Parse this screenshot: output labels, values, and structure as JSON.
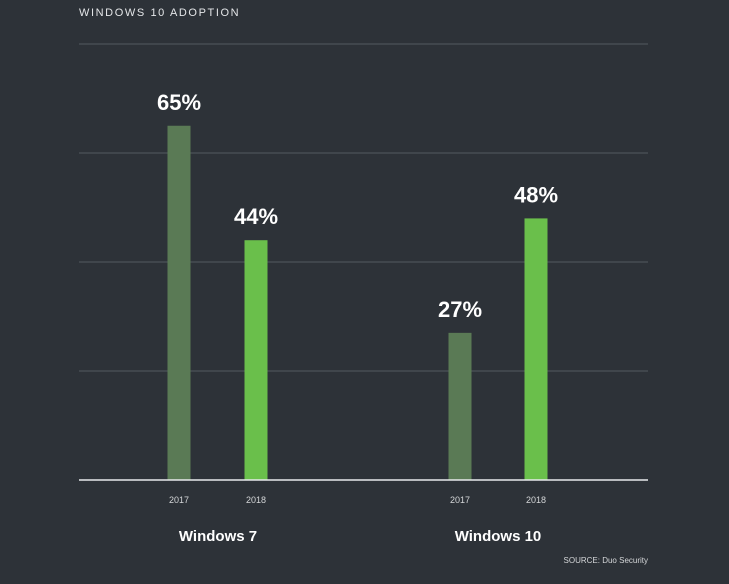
{
  "chart_data": {
    "type": "bar",
    "title": "WINDOWS 10 ADOPTION",
    "groups": [
      {
        "name": "Windows 7",
        "bars": [
          {
            "year": "2017",
            "value": 65,
            "label": "65%",
            "color": "#5a7a55"
          },
          {
            "year": "2018",
            "value": 44,
            "label": "44%",
            "color": "#6abf4b"
          }
        ]
      },
      {
        "name": "Windows 10",
        "bars": [
          {
            "year": "2017",
            "value": 27,
            "label": "27%",
            "color": "#5a7a55"
          },
          {
            "year": "2018",
            "value": 48,
            "label": "48%",
            "color": "#6abf4b"
          }
        ]
      }
    ],
    "ylim": [
      0,
      80
    ],
    "grid": true,
    "source": "SOURCE: Duo Security"
  }
}
